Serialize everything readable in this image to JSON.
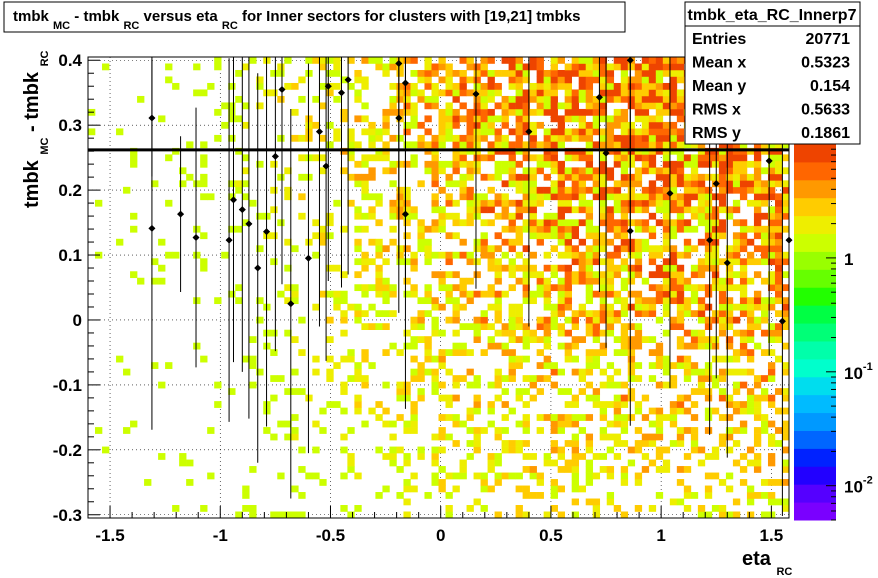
{
  "chart_data": {
    "type": "heatmap",
    "title_parts": {
      "a": "tmbk",
      "a_sub": "MC",
      "b": " - tmbk",
      "b_sub": "RC",
      "c": " versus eta",
      "c_sub": "RC",
      "d": " for Inner sectors for clusters with [19,21] tmbks"
    },
    "xlabel": "eta",
    "xlabel_sub": "RC",
    "ylabel_a": "tmbk",
    "ylabel_a_sub": "MC",
    "ylabel_b": " - tmbk",
    "ylabel_b_sub": "RC",
    "xlim": [
      -1.6,
      1.58
    ],
    "ylim": [
      -0.305,
      0.405
    ],
    "xticks": [
      -1.5,
      -1,
      -0.5,
      0,
      0.5,
      1,
      1.5
    ],
    "xtick_labels": [
      "-1.5",
      "-1",
      "-0.5",
      "0",
      "0.5",
      "1",
      "1.5"
    ],
    "yticks": [
      -0.3,
      -0.2,
      -0.1,
      0,
      0.1,
      0.2,
      0.3,
      0.4
    ],
    "ytick_labels": [
      "-0.3",
      "-0.2",
      "-0.1",
      "0",
      "0.1",
      "0.2",
      "0.3",
      "0.4"
    ],
    "grid": true,
    "colorbar": {
      "scale": "log",
      "range": [
        0.005,
        10
      ],
      "labels": [
        {
          "value": 1,
          "base": "1",
          "exp": ""
        },
        {
          "value": 0.1,
          "base": "10",
          "exp": "-1"
        },
        {
          "value": 0.01,
          "base": "10",
          "exp": "-2"
        }
      ]
    },
    "horizontal_line_y": 0.262,
    "stats": {
      "name": "tmbk_eta_RC_Innerp7",
      "rows": [
        {
          "label": "Entries",
          "value": "20771"
        },
        {
          "label": "Mean x",
          "value": "0.5323"
        },
        {
          "label": "Mean y",
          "value": "0.154"
        },
        {
          "label": "RMS x",
          "value": "0.5633"
        },
        {
          "label": "RMS y",
          "value": "0.1861"
        }
      ]
    },
    "profile_points": [
      {
        "x": -1.31,
        "y": 0.311,
        "err": 0.09
      },
      {
        "x": -1.31,
        "y": 0.141,
        "err": 0.31
      },
      {
        "x": -1.18,
        "y": 0.163,
        "err": 0.12
      },
      {
        "x": -1.11,
        "y": 0.127,
        "err": 0.2
      },
      {
        "x": -0.96,
        "y": 0.123,
        "err": 0.28
      },
      {
        "x": -0.94,
        "y": 0.185,
        "err": 0.25
      },
      {
        "x": -0.9,
        "y": 0.17,
        "err": 0.25
      },
      {
        "x": -0.87,
        "y": 0.148,
        "err": 0.3
      },
      {
        "x": -0.83,
        "y": 0.08,
        "err": 0.3
      },
      {
        "x": -0.79,
        "y": 0.136,
        "err": 0.3
      },
      {
        "x": -0.75,
        "y": 0.252,
        "err": 0.3
      },
      {
        "x": -0.72,
        "y": 0.355,
        "err": 0.3
      },
      {
        "x": -0.68,
        "y": 0.025,
        "err": 0.3
      },
      {
        "x": -0.6,
        "y": 0.095,
        "err": 0.3
      },
      {
        "x": -0.55,
        "y": 0.29,
        "err": 0.3
      },
      {
        "x": -0.52,
        "y": 0.237,
        "err": 0.3
      },
      {
        "x": -0.51,
        "y": 0.36,
        "err": 0.3
      },
      {
        "x": -0.45,
        "y": 0.35,
        "err": 0.3
      },
      {
        "x": -0.42,
        "y": 0.37,
        "err": 0.3
      },
      {
        "x": -0.19,
        "y": 0.395,
        "err": 0.3
      },
      {
        "x": -0.19,
        "y": 0.311,
        "err": 0.3
      },
      {
        "x": -0.16,
        "y": 0.163,
        "err": 0.3
      },
      {
        "x": -0.16,
        "y": 0.365,
        "err": 0.3
      },
      {
        "x": 0.16,
        "y": 0.348,
        "err": 0.3
      },
      {
        "x": 0.4,
        "y": 0.29,
        "err": 0.3
      },
      {
        "x": 0.72,
        "y": 0.343,
        "err": 0.3
      },
      {
        "x": 0.75,
        "y": 0.257,
        "err": 0.3
      },
      {
        "x": 0.86,
        "y": 0.4,
        "err": 0.3
      },
      {
        "x": 0.86,
        "y": 0.137,
        "err": 0.3
      },
      {
        "x": 1.04,
        "y": 0.195,
        "err": 0.3
      },
      {
        "x": 1.22,
        "y": 0.123,
        "err": 0.3
      },
      {
        "x": 1.25,
        "y": 0.21,
        "err": 0.3
      },
      {
        "x": 1.3,
        "y": 0.088,
        "err": 0.3
      },
      {
        "x": 1.49,
        "y": 0.245,
        "err": 0.3
      },
      {
        "x": 1.55,
        "y": -0.002,
        "err": 0.3
      },
      {
        "x": 1.58,
        "y": 0.123,
        "err": 0.3
      }
    ]
  }
}
